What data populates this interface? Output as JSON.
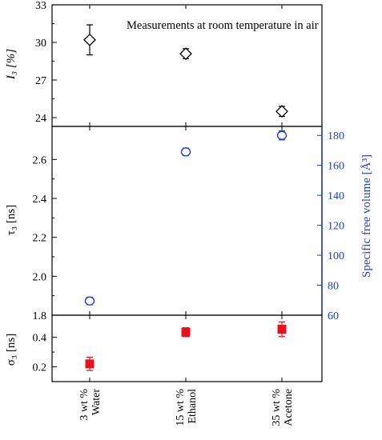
{
  "chart_data": {
    "type": "scatter",
    "categories": [
      [
        "3 wt %",
        "Water"
      ],
      [
        "15 wt %",
        "Ethanol"
      ],
      [
        "35 wt %",
        "Acetone"
      ]
    ],
    "panels": [
      {
        "id": "I3",
        "ylabel": "I₃ [%]",
        "ylim": [
          23.3,
          33.0
        ],
        "yticks": [
          "24",
          "27",
          "30",
          "33"
        ],
        "annotation": "Measurements at room temperature in air",
        "series": [
          {
            "marker": "open-diamond",
            "color": "#000000",
            "values": [
              30.2,
              29.1,
              24.5
            ],
            "errors": [
              1.2,
              0.4,
              0.4
            ]
          }
        ]
      },
      {
        "id": "tau3",
        "ylabel": "τ₃ [ns]",
        "ylim": [
          1.8,
          2.77
        ],
        "yticks": [
          "1.8",
          "2.0",
          "2.2",
          "2.4",
          "2.6"
        ],
        "y2label": "Specific free volume [Å³]",
        "y2lim": [
          60,
          186
        ],
        "y2ticks": [
          "60",
          "80",
          "100",
          "120",
          "140",
          "160",
          "180"
        ],
        "series": [
          {
            "marker": "open-circle",
            "color": "#1f3fd0",
            "axis": "right",
            "values": [
              69.5,
              169.0,
              180.0
            ],
            "errors": [
              2.5,
              2.5,
              3.0
            ]
          }
        ]
      },
      {
        "id": "sigma3",
        "ylabel": "σ₃ [ns]",
        "ylim": [
          0.1,
          0.55
        ],
        "yticks": [
          "0.2",
          "0.4"
        ],
        "series": [
          {
            "marker": "filled-square",
            "color": "#e8121c",
            "values": [
              0.22,
              0.435,
              0.455
            ],
            "errors": [
              0.045,
              0.03,
              0.05
            ]
          }
        ]
      }
    ]
  }
}
